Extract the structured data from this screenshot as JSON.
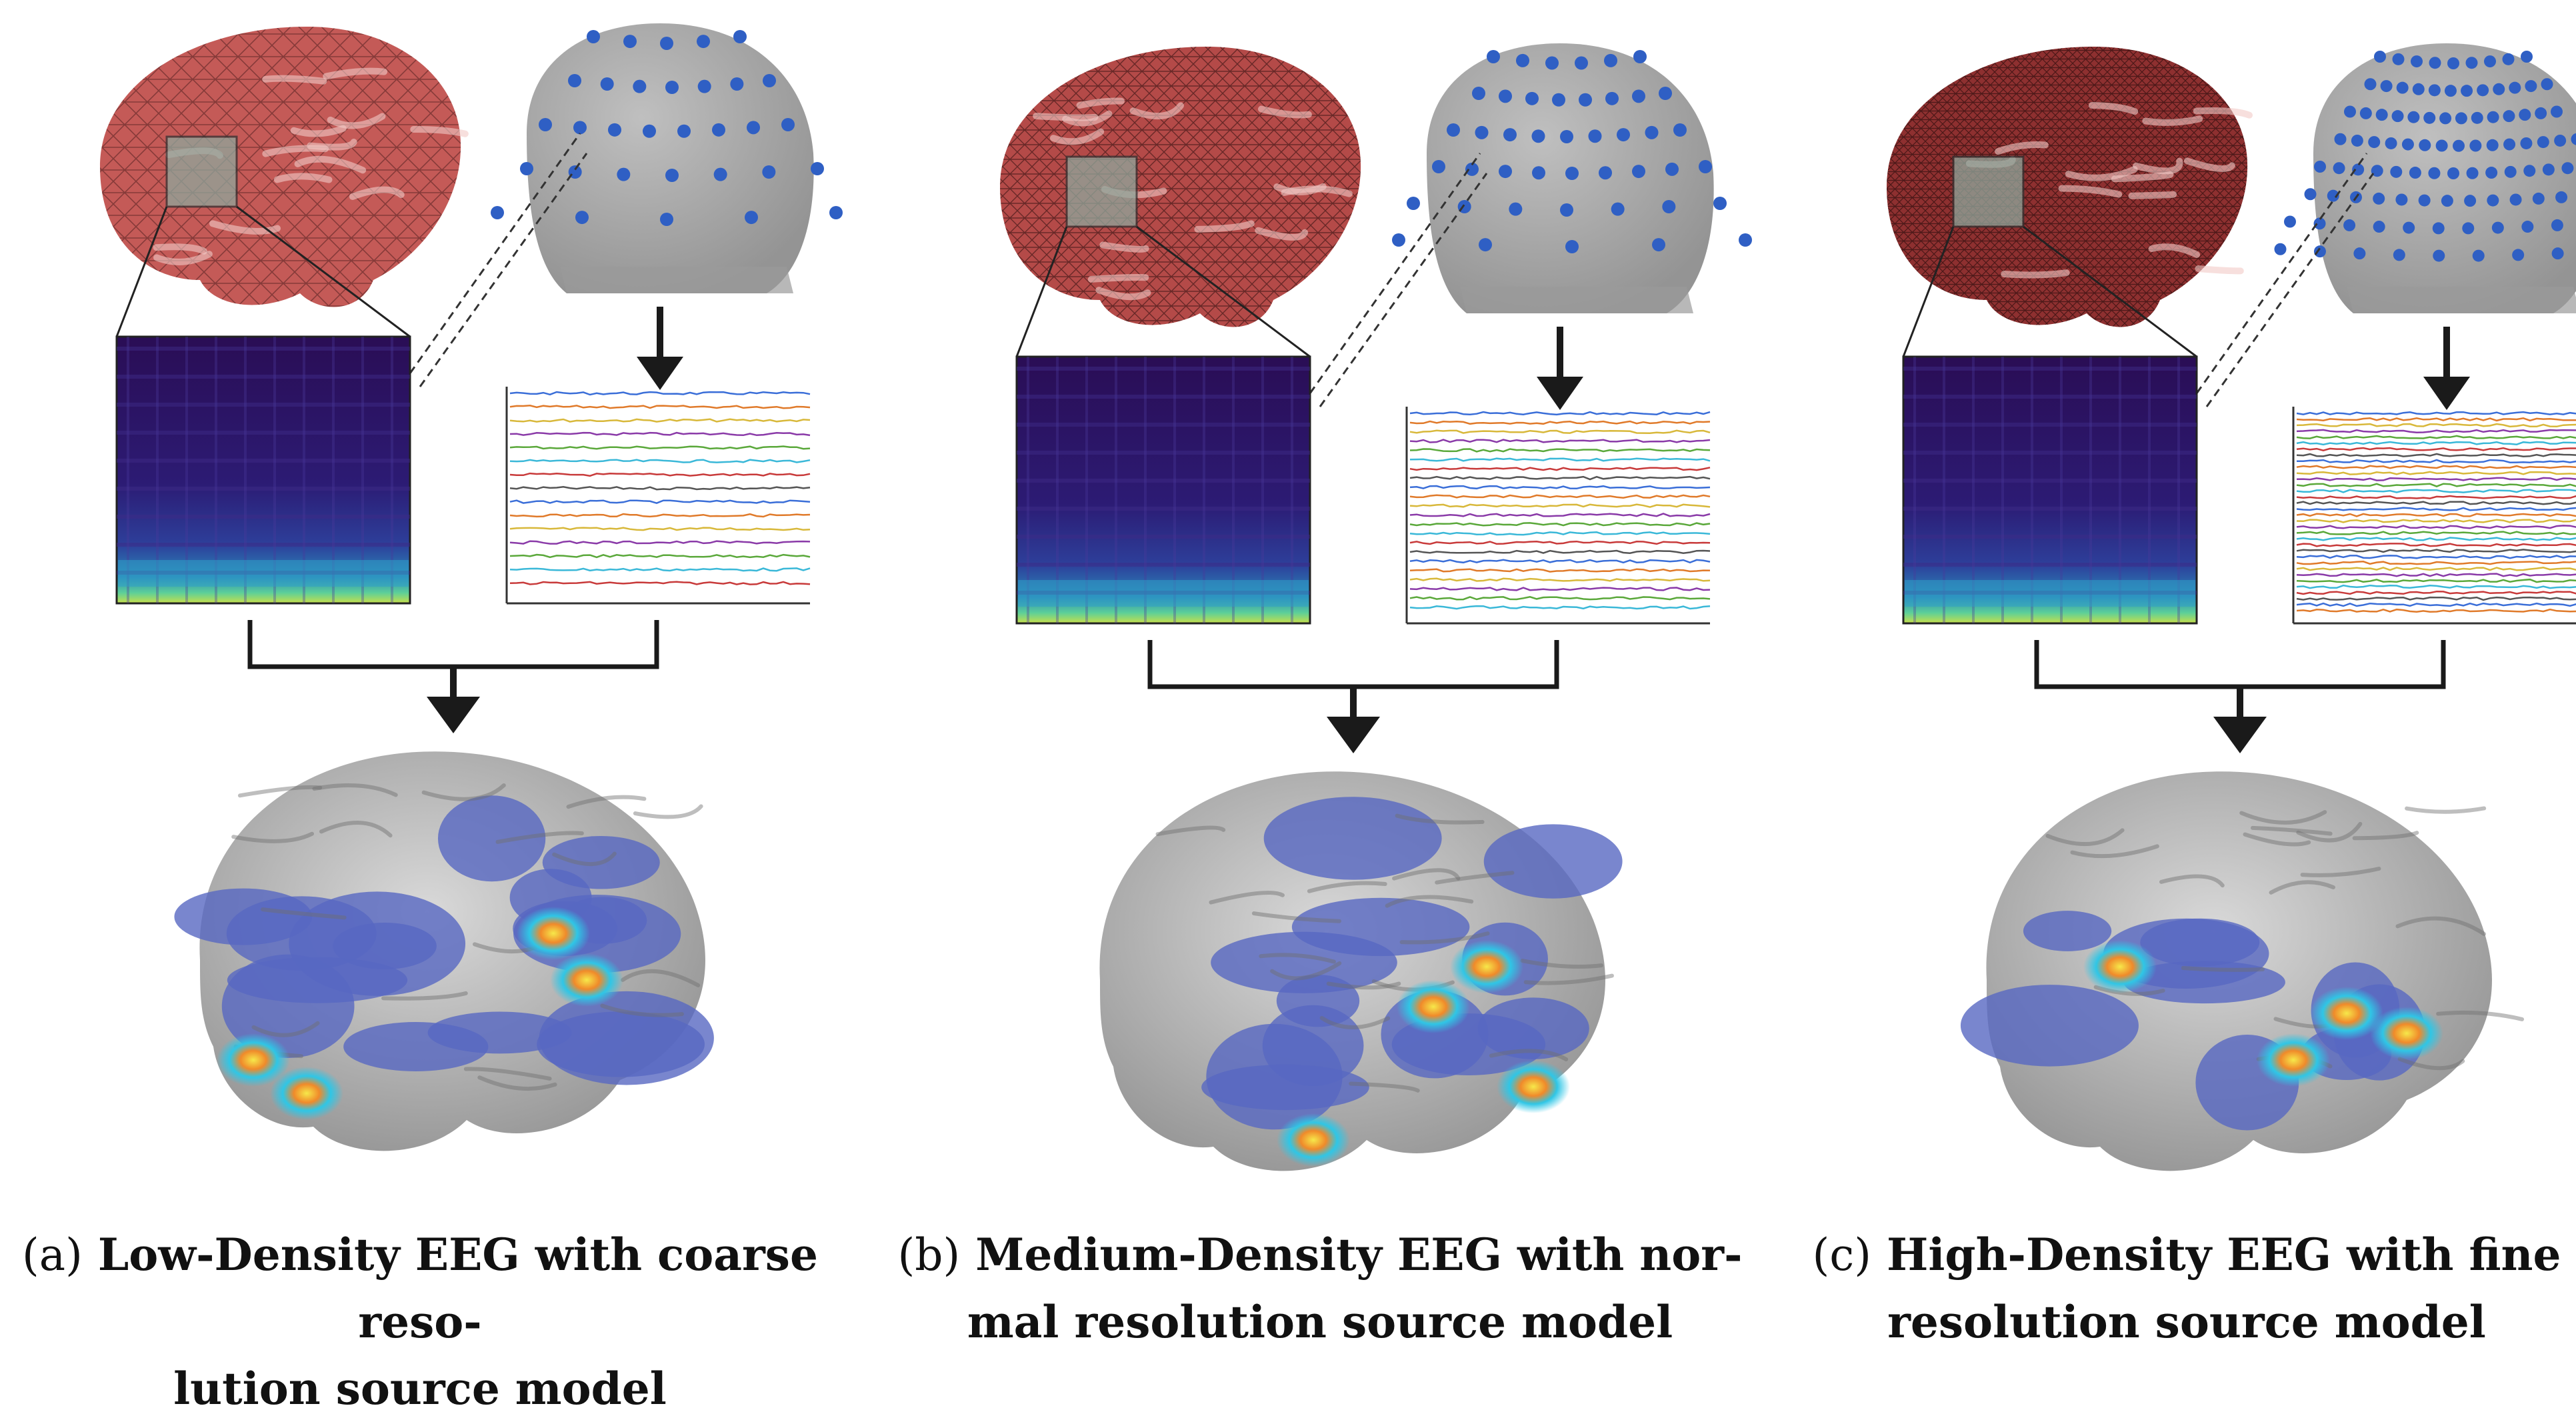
{
  "panels": [
    {
      "id": "a",
      "letter": "(a)",
      "caption_line1": "Low-Density EEG with coarse reso-",
      "caption_line2": "lution source model",
      "electrode_density": "low",
      "mesh_resolution": "coarse",
      "channel_count_drawn": 15
    },
    {
      "id": "b",
      "letter": "(b)",
      "caption_line1": "Medium-Density EEG with nor-",
      "caption_line2": "mal resolution source model",
      "electrode_density": "medium",
      "mesh_resolution": "normal",
      "channel_count_drawn": 22
    },
    {
      "id": "c",
      "letter": "(c)",
      "caption_line1": "High-Density EEG with fine",
      "caption_line2": "resolution source model",
      "electrode_density": "high",
      "mesh_resolution": "fine",
      "channel_count_drawn": 34
    }
  ],
  "colors": {
    "mesh_brain": "#c9615e",
    "head": "#a9a9a9",
    "electrode": "#2f5fc4",
    "spectrogram_bg": "#2b0f5e",
    "cortex": "#bdbdbd",
    "source_map": "#5868c2",
    "arrow": "#1a1a1a"
  },
  "trace_colors": [
    "#3a6ed8",
    "#e07a2a",
    "#d8b83a",
    "#8a3aa8",
    "#5aa83a",
    "#3ab8d8",
    "#c83a3a",
    "#555555"
  ]
}
